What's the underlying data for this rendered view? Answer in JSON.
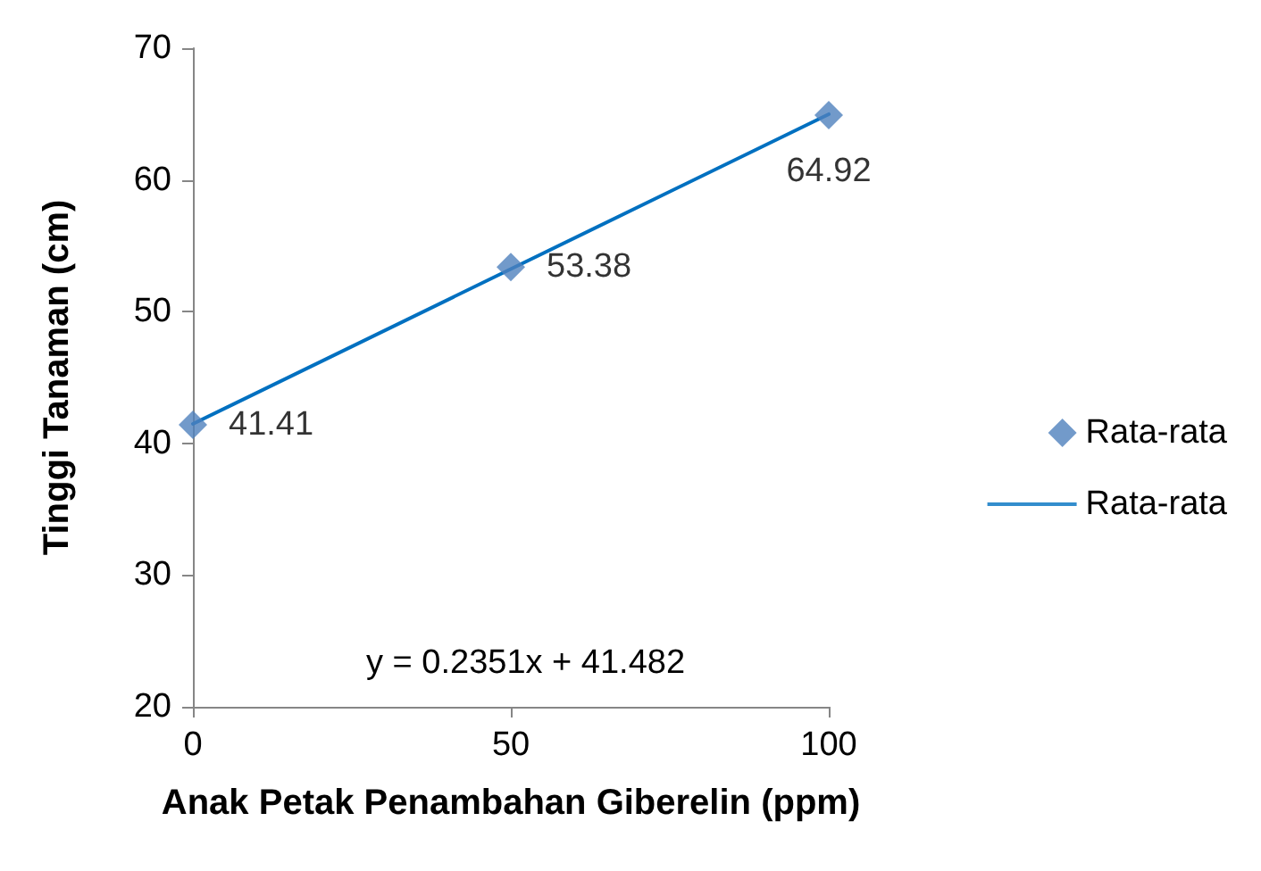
{
  "chart_data": {
    "type": "scatter",
    "xlabel": "Anak Petak Penambahan Giberelin (ppm)",
    "ylabel": "Tinggi Tanaman (cm)",
    "x": [
      0,
      50,
      100
    ],
    "series": [
      {
        "name": "Rata-rata",
        "color": "#4f81bd",
        "values": [
          41.41,
          53.38,
          64.92
        ],
        "value_labels": [
          "41.41",
          "53.38",
          "64.92"
        ],
        "marker": "diamond"
      },
      {
        "name": "Rata-rata",
        "type": "line",
        "color": "#0070c0",
        "x": [
          0,
          100
        ],
        "values": [
          41.48,
          64.99
        ],
        "marker": "none",
        "line_style": "solid"
      }
    ],
    "xlim": [
      0,
      100
    ],
    "xticks": [
      0,
      50,
      100
    ],
    "ylim": [
      20,
      70
    ],
    "yticks": [
      20,
      30,
      40,
      50,
      60,
      70
    ],
    "annotations": [
      "y = 0.2351x + 41.482"
    ],
    "grid": false,
    "legend": "right"
  }
}
